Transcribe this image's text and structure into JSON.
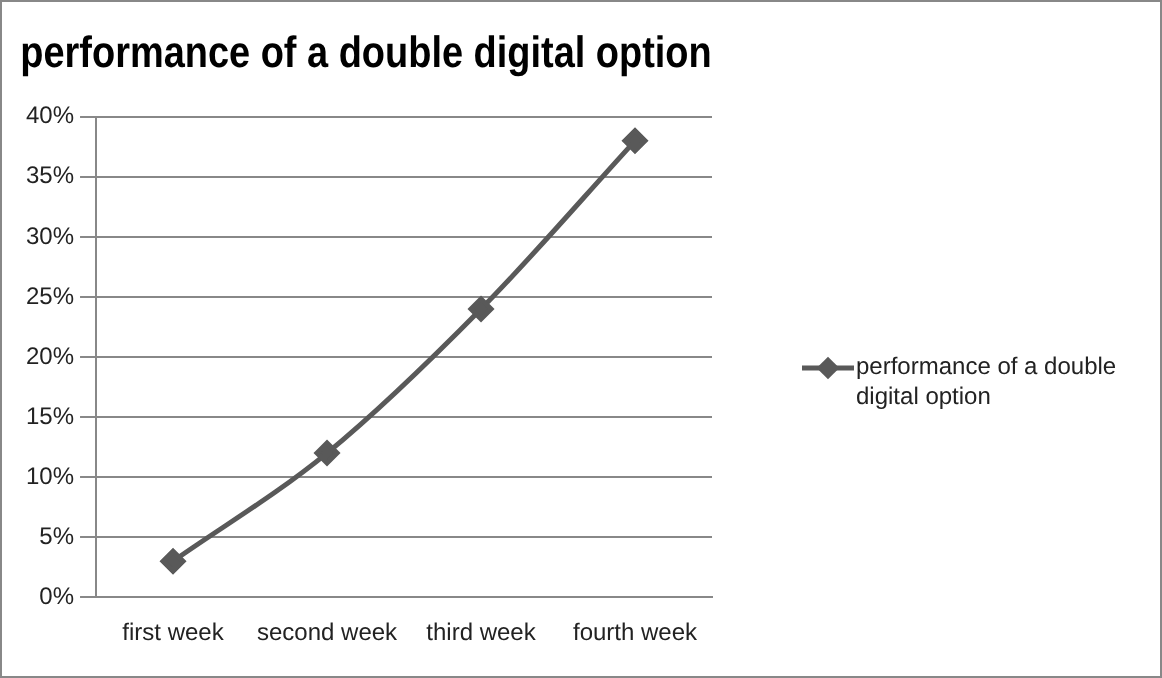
{
  "chart_data": {
    "type": "line",
    "title": "performance of a double digital option",
    "categories": [
      "first week",
      "second week",
      "third week",
      "fourth week"
    ],
    "series": [
      {
        "name": "performance of a double digital option",
        "color": "#595959",
        "values": [
          3,
          12,
          24,
          38
        ]
      }
    ],
    "ylim": [
      0,
      40
    ],
    "yticks": [
      {
        "value": 0,
        "label": "0%"
      },
      {
        "value": 5,
        "label": "5%"
      },
      {
        "value": 10,
        "label": "10%"
      },
      {
        "value": 15,
        "label": "15%"
      },
      {
        "value": 20,
        "label": "20%"
      },
      {
        "value": 25,
        "label": "25%"
      },
      {
        "value": 30,
        "label": "30%"
      },
      {
        "value": 35,
        "label": "35%"
      },
      {
        "value": 40,
        "label": "40%"
      }
    ],
    "grid": "y",
    "legend": "right",
    "marker": "diamond",
    "line_style": "solid"
  }
}
